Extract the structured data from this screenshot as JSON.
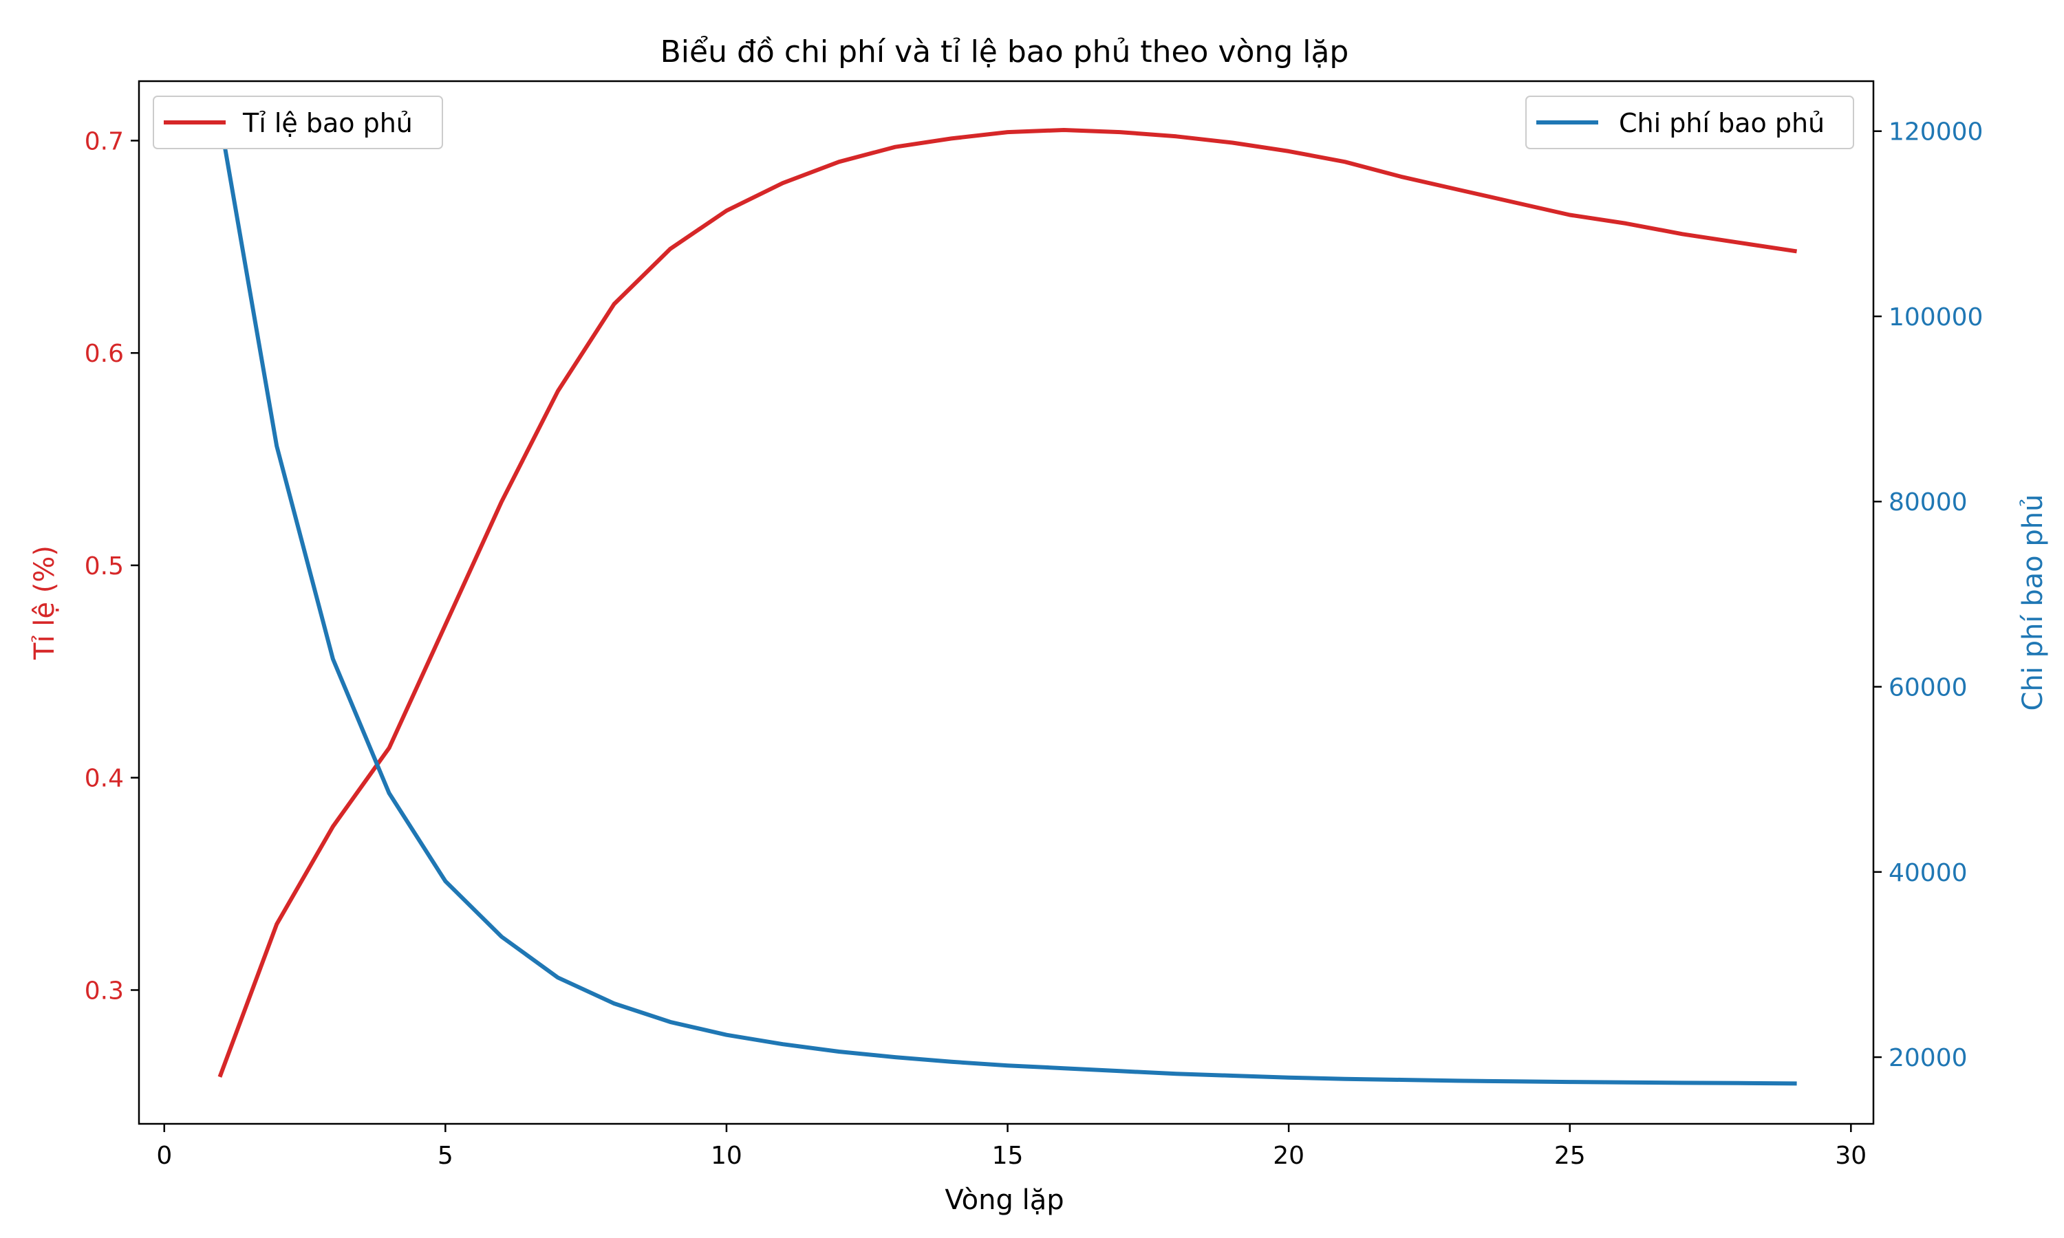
{
  "chart_data": {
    "type": "line",
    "title": "Biểu đồ chi phí và tỉ lệ bao phủ theo vòng lặp",
    "xlabel": "Vòng lặp",
    "xlim": [
      -0.45,
      30.4
    ],
    "xticks": [
      0,
      5,
      10,
      15,
      20,
      25,
      30
    ],
    "x": [
      1,
      2,
      3,
      4,
      5,
      6,
      7,
      8,
      9,
      10,
      11,
      12,
      13,
      14,
      15,
      16,
      17,
      18,
      19,
      20,
      21,
      22,
      23,
      24,
      25,
      26,
      27,
      28,
      29
    ],
    "series": [
      {
        "name": "Tỉ lệ bao phủ",
        "axis": "left",
        "color": "#d62728",
        "values": [
          0.26,
          0.331,
          0.377,
          0.414,
          0.472,
          0.53,
          0.582,
          0.623,
          0.649,
          0.667,
          0.68,
          0.69,
          0.697,
          0.701,
          0.704,
          0.705,
          0.704,
          0.702,
          0.699,
          0.695,
          0.69,
          0.683,
          0.677,
          0.671,
          0.665,
          0.661,
          0.656,
          0.652,
          0.648
        ]
      },
      {
        "name": "Chi phí bao phủ",
        "axis": "right",
        "color": "#1f77b4",
        "values": [
          121000,
          86000,
          63000,
          48500,
          39000,
          33000,
          28600,
          25800,
          23800,
          22400,
          21400,
          20600,
          20000,
          19500,
          19100,
          18800,
          18500,
          18200,
          18000,
          17800,
          17650,
          17550,
          17450,
          17380,
          17320,
          17270,
          17230,
          17200,
          17150
        ]
      }
    ],
    "y_left": {
      "label": "Tỉ lệ (%)",
      "color": "#d62728",
      "ylim": [
        0.237,
        0.728
      ],
      "ticks": [
        0.3,
        0.4,
        0.5,
        0.6,
        0.7
      ],
      "tick_labels": [
        "0.3",
        "0.4",
        "0.5",
        "0.6",
        "0.7"
      ]
    },
    "y_right": {
      "label": "Chi phí bao phủ",
      "color": "#1f77b4",
      "ylim": [
        12800,
        125400
      ],
      "ticks": [
        20000,
        40000,
        60000,
        80000,
        100000,
        120000
      ],
      "tick_labels": [
        "20000",
        "40000",
        "60000",
        "80000",
        "100000",
        "120000"
      ]
    },
    "x_tick_labels": [
      "0",
      "5",
      "10",
      "15",
      "20",
      "25",
      "30"
    ],
    "legends": [
      {
        "position": "top-left",
        "entries": [
          "Tỉ lệ bao phủ"
        ]
      },
      {
        "position": "top-right",
        "entries": [
          "Chi phí bao phủ"
        ]
      }
    ],
    "grid": false
  }
}
